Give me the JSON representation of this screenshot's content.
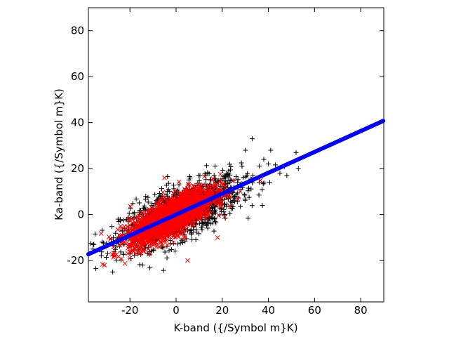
{
  "chart_data": {
    "type": "scatter",
    "xlabel": "K-band ({/Symbol m}K)",
    "ylabel": "Ka-band ({/Symbol m}K)",
    "xlim": [
      -38,
      90
    ],
    "ylim": [
      -38,
      90
    ],
    "xticks": [
      -20,
      0,
      20,
      40,
      60,
      80
    ],
    "yticks": [
      -20,
      0,
      20,
      40,
      60,
      80
    ],
    "grid": false,
    "series": [
      {
        "marker": "plus",
        "color": "#000000",
        "description_count": 1400,
        "cloud": {
          "x_center": 2,
          "x_sd": 13,
          "slope": 0.4,
          "intercept": 0,
          "noise_sd": 5.5
        },
        "outliers": [
          [
            33,
            33
          ],
          [
            41,
            28
          ],
          [
            52,
            27
          ],
          [
            47,
            21
          ],
          [
            40,
            22
          ],
          [
            45,
            18
          ],
          [
            53,
            20
          ],
          [
            36,
            14
          ],
          [
            38,
            24
          ],
          [
            30,
            28
          ],
          [
            -33,
            -15
          ],
          [
            -36,
            -15
          ],
          [
            48,
            17
          ],
          [
            -32,
            -12
          ]
        ]
      },
      {
        "marker": "x",
        "color": "#ff0000",
        "description_count": 2200,
        "cloud": {
          "x_center": -2,
          "x_sd": 9,
          "slope": 0.5,
          "intercept": 0,
          "noise_sd": 3.8
        },
        "outliers": [
          [
            -5,
            16
          ],
          [
            5,
            -20
          ],
          [
            -20,
            -19
          ],
          [
            -31,
            -22
          ],
          [
            22,
            9
          ],
          [
            18,
            -10
          ]
        ]
      },
      {
        "marker": "dot",
        "color": "#0000ff",
        "fit_line": {
          "x_start": -38,
          "x_end": 90,
          "slope": 0.454,
          "intercept": 0.0
        }
      }
    ]
  }
}
